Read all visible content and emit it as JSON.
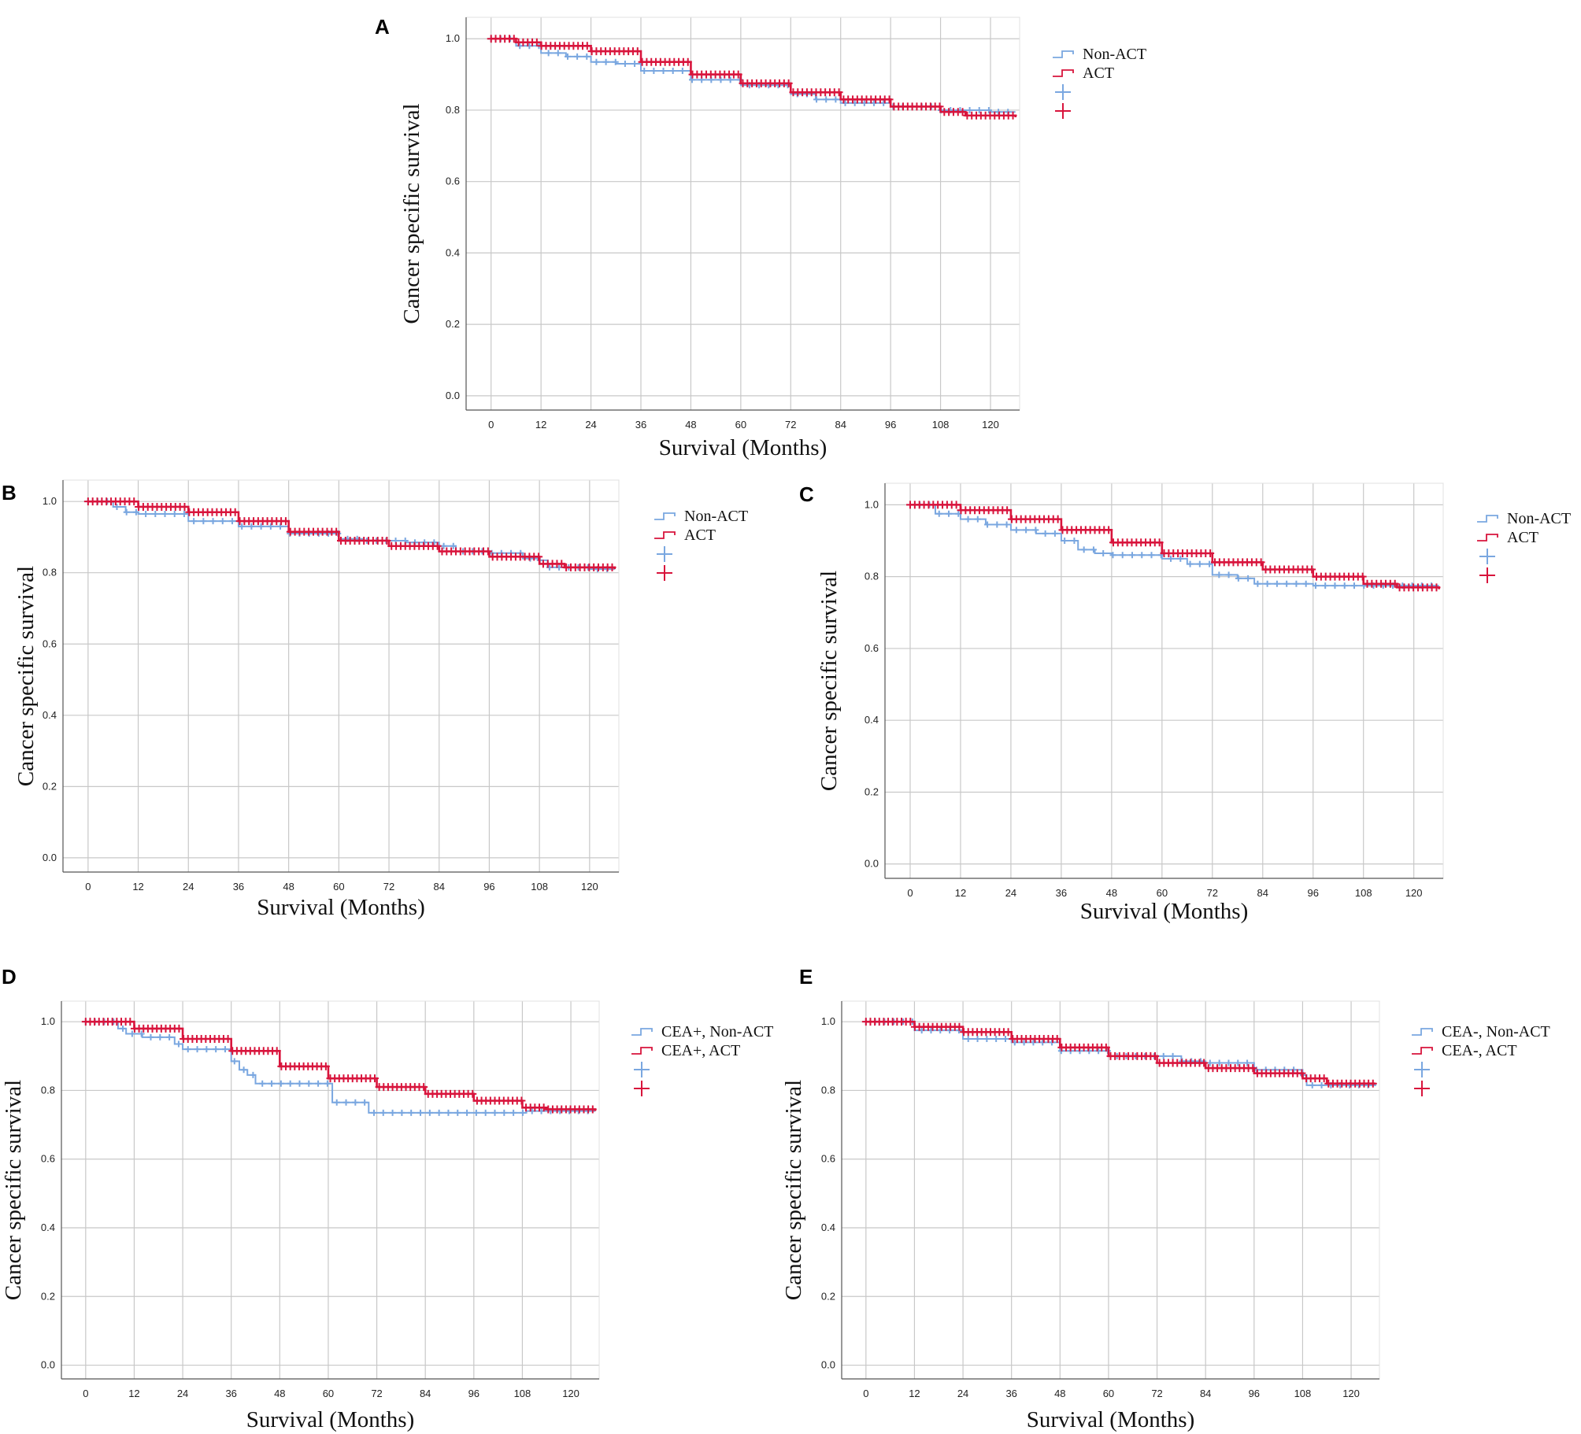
{
  "colors": {
    "non_act": "#7aa7e0",
    "act": "#d8143c",
    "grid": "#c8c8c8",
    "frame": "#555555"
  },
  "legend_icons": {
    "step": "step-line-icon",
    "censor": "censor-plus-icon"
  },
  "chart_data": [
    {
      "panel": "A",
      "type": "line",
      "title": "",
      "xlabel": "Survival (Months)",
      "ylabel": "Cancer specific survival",
      "xlim": [
        -6,
        127
      ],
      "ylim": [
        -0.04,
        1.06
      ],
      "x_ticks": [
        0,
        12,
        24,
        36,
        48,
        60,
        72,
        84,
        96,
        108,
        120
      ],
      "y_ticks": [
        "0.0",
        "0.2",
        "0.4",
        "0.6",
        "0.8",
        "1.0"
      ],
      "legend": [
        "Non-ACT",
        "ACT",
        "",
        ""
      ],
      "legend_position": "top-right-outside",
      "series": [
        {
          "name": "Non-ACT",
          "points": [
            [
              0,
              1.0
            ],
            [
              6,
              0.98
            ],
            [
              12,
              0.96
            ],
            [
              18,
              0.95
            ],
            [
              24,
              0.935
            ],
            [
              30,
              0.93
            ],
            [
              36,
              0.91
            ],
            [
              48,
              0.885
            ],
            [
              60,
              0.87
            ],
            [
              72,
              0.845
            ],
            [
              78,
              0.83
            ],
            [
              84,
              0.82
            ],
            [
              96,
              0.81
            ],
            [
              108,
              0.8
            ],
            [
              120,
              0.795
            ],
            [
              126,
              0.795
            ]
          ]
        },
        {
          "name": "ACT",
          "points": [
            [
              0,
              1.0
            ],
            [
              6,
              0.99
            ],
            [
              12,
              0.98
            ],
            [
              24,
              0.965
            ],
            [
              36,
              0.935
            ],
            [
              48,
              0.9
            ],
            [
              60,
              0.875
            ],
            [
              72,
              0.85
            ],
            [
              84,
              0.83
            ],
            [
              96,
              0.81
            ],
            [
              108,
              0.795
            ],
            [
              114,
              0.785
            ],
            [
              126,
              0.78
            ]
          ]
        }
      ]
    },
    {
      "panel": "B",
      "type": "line",
      "title": "",
      "xlabel": "Survival (Months)",
      "ylabel": "Cancer specific survival",
      "xlim": [
        -6,
        127
      ],
      "ylim": [
        -0.04,
        1.06
      ],
      "x_ticks": [
        0,
        12,
        24,
        36,
        48,
        60,
        72,
        84,
        96,
        108,
        120
      ],
      "y_ticks": [
        "0.0",
        "0.2",
        "0.4",
        "0.6",
        "0.8",
        "1.0"
      ],
      "legend": [
        "Non-ACT",
        "ACT",
        "",
        ""
      ],
      "legend_position": "top-right-outside",
      "series": [
        {
          "name": "Non-ACT",
          "points": [
            [
              0,
              1.0
            ],
            [
              6,
              0.985
            ],
            [
              9,
              0.97
            ],
            [
              12,
              0.965
            ],
            [
              24,
              0.945
            ],
            [
              36,
              0.93
            ],
            [
              48,
              0.91
            ],
            [
              60,
              0.895
            ],
            [
              66,
              0.89
            ],
            [
              72,
              0.89
            ],
            [
              76,
              0.885
            ],
            [
              84,
              0.875
            ],
            [
              88,
              0.86
            ],
            [
              96,
              0.855
            ],
            [
              104,
              0.84
            ],
            [
              108,
              0.835
            ],
            [
              110,
              0.815
            ],
            [
              120,
              0.81
            ],
            [
              126,
              0.81
            ]
          ]
        },
        {
          "name": "ACT",
          "points": [
            [
              0,
              1.0
            ],
            [
              12,
              0.985
            ],
            [
              24,
              0.97
            ],
            [
              36,
              0.945
            ],
            [
              48,
              0.915
            ],
            [
              60,
              0.89
            ],
            [
              72,
              0.875
            ],
            [
              84,
              0.86
            ],
            [
              96,
              0.845
            ],
            [
              108,
              0.825
            ],
            [
              114,
              0.815
            ],
            [
              126,
              0.81
            ]
          ]
        }
      ]
    },
    {
      "panel": "C",
      "type": "line",
      "title": "",
      "xlabel": "Survival (Months)",
      "ylabel": "Cancer specific survival",
      "xlim": [
        -6,
        127
      ],
      "ylim": [
        -0.04,
        1.06
      ],
      "x_ticks": [
        0,
        12,
        24,
        36,
        48,
        60,
        72,
        84,
        96,
        108,
        120
      ],
      "y_ticks": [
        "0.0",
        "0.2",
        "0.4",
        "0.6",
        "0.8",
        "1.0"
      ],
      "legend": [
        "Non-ACT",
        "ACT",
        "",
        ""
      ],
      "legend_position": "top-right-outside",
      "series": [
        {
          "name": "Non-ACT",
          "points": [
            [
              0,
              1.0
            ],
            [
              6,
              0.975
            ],
            [
              12,
              0.96
            ],
            [
              18,
              0.945
            ],
            [
              24,
              0.93
            ],
            [
              30,
              0.92
            ],
            [
              36,
              0.9
            ],
            [
              40,
              0.875
            ],
            [
              44,
              0.865
            ],
            [
              48,
              0.86
            ],
            [
              60,
              0.85
            ],
            [
              66,
              0.835
            ],
            [
              72,
              0.805
            ],
            [
              78,
              0.795
            ],
            [
              82,
              0.78
            ],
            [
              96,
              0.775
            ],
            [
              108,
              0.775
            ],
            [
              120,
              0.775
            ],
            [
              126,
              0.775
            ]
          ]
        },
        {
          "name": "ACT",
          "points": [
            [
              0,
              1.0
            ],
            [
              12,
              0.985
            ],
            [
              24,
              0.96
            ],
            [
              36,
              0.93
            ],
            [
              48,
              0.895
            ],
            [
              60,
              0.865
            ],
            [
              72,
              0.84
            ],
            [
              84,
              0.82
            ],
            [
              96,
              0.8
            ],
            [
              108,
              0.78
            ],
            [
              116,
              0.77
            ],
            [
              126,
              0.765
            ]
          ]
        }
      ]
    },
    {
      "panel": "D",
      "type": "line",
      "title": "",
      "xlabel": "Survival (Months)",
      "ylabel": "Cancer specific survival",
      "xlim": [
        -6,
        127
      ],
      "ylim": [
        -0.04,
        1.06
      ],
      "x_ticks": [
        0,
        12,
        24,
        36,
        48,
        60,
        72,
        84,
        96,
        108,
        120
      ],
      "y_ticks": [
        "0.0",
        "0.2",
        "0.4",
        "0.6",
        "0.8",
        "1.0"
      ],
      "legend": [
        "CEA+, Non-ACT",
        "CEA+, ACT",
        "",
        ""
      ],
      "legend_position": "top-right-outside",
      "series": [
        {
          "name": "CEA+, Non-ACT",
          "points": [
            [
              0,
              1.0
            ],
            [
              8,
              0.98
            ],
            [
              10,
              0.965
            ],
            [
              14,
              0.955
            ],
            [
              22,
              0.935
            ],
            [
              24,
              0.92
            ],
            [
              35,
              0.92
            ],
            [
              36,
              0.885
            ],
            [
              38,
              0.86
            ],
            [
              40,
              0.845
            ],
            [
              42,
              0.82
            ],
            [
              60,
              0.82
            ],
            [
              61,
              0.765
            ],
            [
              69,
              0.765
            ],
            [
              70,
              0.735
            ],
            [
              108,
              0.735
            ],
            [
              109,
              0.74
            ],
            [
              126,
              0.74
            ]
          ]
        },
        {
          "name": "CEA+, ACT",
          "points": [
            [
              0,
              1.0
            ],
            [
              12,
              0.98
            ],
            [
              24,
              0.95
            ],
            [
              36,
              0.915
            ],
            [
              48,
              0.87
            ],
            [
              60,
              0.835
            ],
            [
              72,
              0.81
            ],
            [
              84,
              0.79
            ],
            [
              96,
              0.77
            ],
            [
              108,
              0.75
            ],
            [
              114,
              0.745
            ],
            [
              126,
              0.74
            ]
          ]
        }
      ]
    },
    {
      "panel": "E",
      "type": "line",
      "title": "",
      "xlabel": "Survival (Months)",
      "ylabel": "Cancer specific survival",
      "xlim": [
        -6,
        127
      ],
      "ylim": [
        -0.04,
        1.06
      ],
      "x_ticks": [
        0,
        12,
        24,
        36,
        48,
        60,
        72,
        84,
        96,
        108,
        120
      ],
      "y_ticks": [
        "0.0",
        "0.2",
        "0.4",
        "0.6",
        "0.8",
        "1.0"
      ],
      "legend": [
        "CEA-, Non-ACT",
        "CEA-, ACT",
        "",
        ""
      ],
      "legend_position": "top-right-outside",
      "series": [
        {
          "name": "CEA-, Non-ACT",
          "points": [
            [
              0,
              1.0
            ],
            [
              12,
              0.975
            ],
            [
              24,
              0.95
            ],
            [
              36,
              0.94
            ],
            [
              48,
              0.915
            ],
            [
              60,
              0.9
            ],
            [
              66,
              0.9
            ],
            [
              72,
              0.9
            ],
            [
              78,
              0.885
            ],
            [
              84,
              0.88
            ],
            [
              96,
              0.86
            ],
            [
              104,
              0.86
            ],
            [
              108,
              0.845
            ],
            [
              109,
              0.815
            ],
            [
              120,
              0.815
            ],
            [
              126,
              0.82
            ]
          ]
        },
        {
          "name": "CEA-, ACT",
          "points": [
            [
              0,
              1.0
            ],
            [
              12,
              0.985
            ],
            [
              24,
              0.97
            ],
            [
              36,
              0.95
            ],
            [
              48,
              0.925
            ],
            [
              60,
              0.9
            ],
            [
              72,
              0.88
            ],
            [
              84,
              0.865
            ],
            [
              96,
              0.85
            ],
            [
              108,
              0.835
            ],
            [
              114,
              0.82
            ],
            [
              126,
              0.82
            ]
          ]
        }
      ]
    }
  ]
}
